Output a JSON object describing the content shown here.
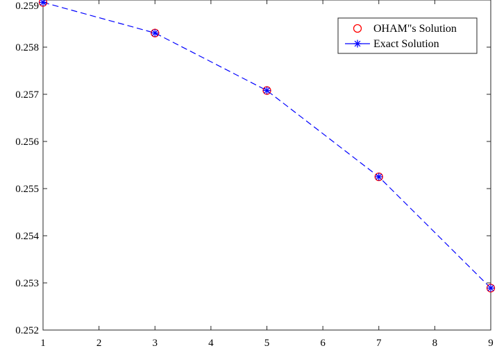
{
  "chart_data": {
    "type": "line",
    "title": "",
    "xlabel": "",
    "ylabel": "",
    "xlim": [
      1,
      9
    ],
    "ylim": [
      0.252,
      0.259
    ],
    "x_ticks": [
      "1",
      "2",
      "3",
      "4",
      "5",
      "6",
      "7",
      "8",
      "9"
    ],
    "y_ticks": [
      "0.252",
      "0.253",
      "0.254",
      "0.255",
      "0.256",
      "0.257",
      "0.258",
      "0.259"
    ],
    "grid": false,
    "legend_position": "top-right",
    "series": [
      {
        "name": "OHAM\"s Solution",
        "marker": "circle",
        "line": "none",
        "color": "#ff0000",
        "x": [
          1,
          3,
          5,
          7,
          9
        ],
        "y": [
          0.25895,
          0.2583,
          0.25708,
          0.25525,
          0.25289
        ]
      },
      {
        "name": "Exact Solution",
        "marker": "asterisk",
        "line": "dashed",
        "color": "#0000ff",
        "x": [
          1,
          3,
          5,
          7,
          9
        ],
        "y": [
          0.25895,
          0.2583,
          0.25708,
          0.25525,
          0.25289
        ]
      }
    ]
  }
}
